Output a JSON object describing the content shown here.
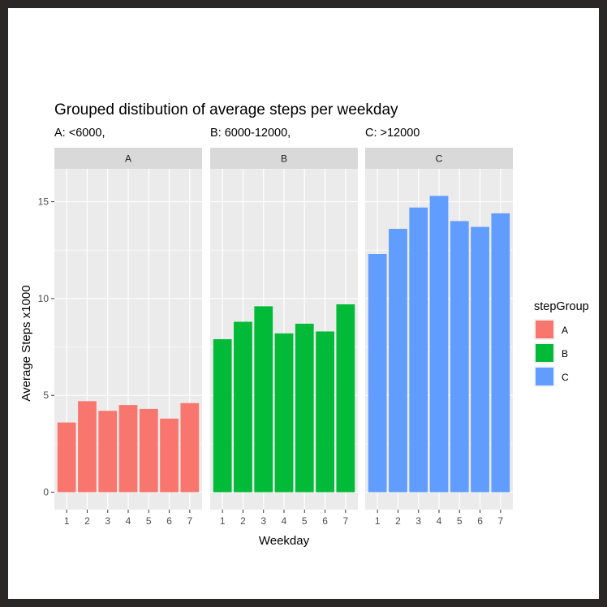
{
  "chart_data": {
    "type": "bar",
    "title": "Grouped distibution of average steps per weekday",
    "subtitle": [
      "A: <6000,",
      "B: 6000-12000,",
      "C: >12000"
    ],
    "xlabel": "Weekday",
    "ylabel": "Average Steps x1000",
    "ylim": [
      -0.9,
      16.7
    ],
    "yticks": [
      0,
      5,
      10,
      15
    ],
    "categories": [
      "1",
      "2",
      "3",
      "4",
      "5",
      "6",
      "7"
    ],
    "grid": true,
    "legend": {
      "title": "stepGroup",
      "position": "right",
      "items": [
        {
          "label": "A",
          "color": "#F8766D"
        },
        {
          "label": "B",
          "color": "#00BA38"
        },
        {
          "label": "C",
          "color": "#619CFF"
        }
      ]
    },
    "panels": [
      {
        "name": "A",
        "color": "#F8766D",
        "values": [
          3.6,
          4.7,
          4.2,
          4.5,
          4.3,
          3.8,
          4.6
        ]
      },
      {
        "name": "B",
        "color": "#00BA38",
        "values": [
          7.9,
          8.8,
          9.6,
          8.2,
          8.7,
          8.3,
          9.7
        ]
      },
      {
        "name": "C",
        "color": "#619CFF",
        "values": [
          12.3,
          13.6,
          14.7,
          15.3,
          14.0,
          13.7,
          14.4
        ]
      }
    ]
  }
}
